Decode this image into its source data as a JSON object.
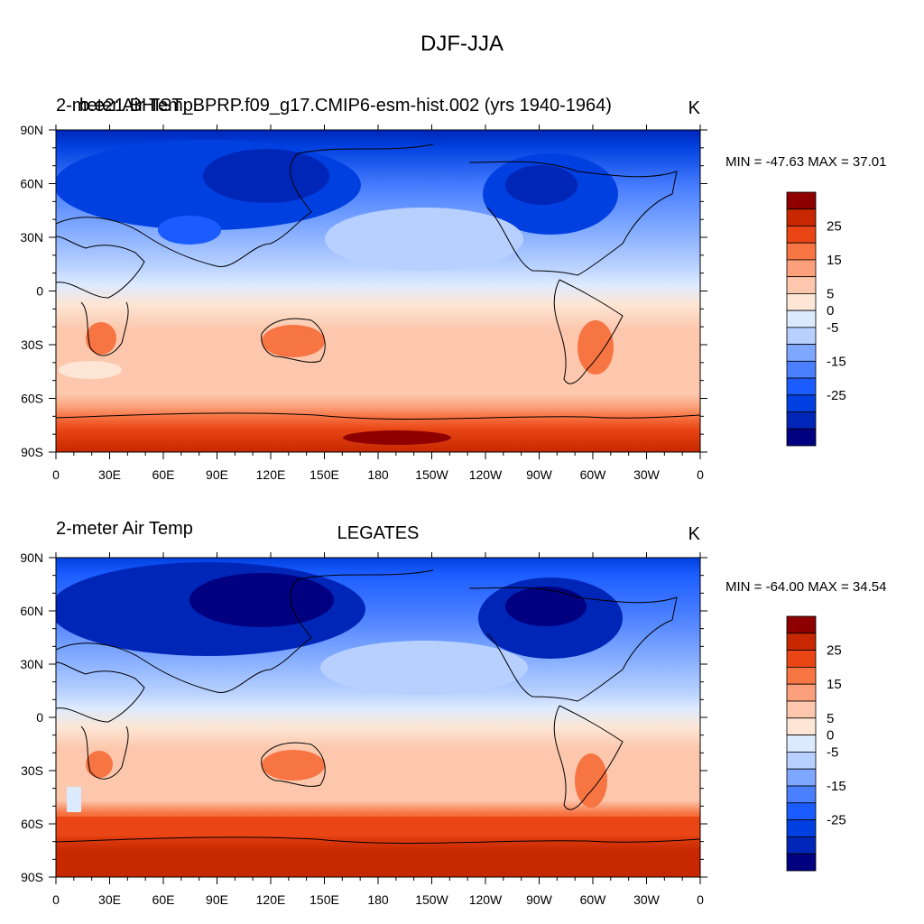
{
  "main_title": "DJF-JJA",
  "panels": [
    {
      "left_title": "2-meter Air Temp",
      "left_title_overlay": "b.e21.BHIST_BPRP.f09_g17.CMIP6-esm-hist.002 (yrs 1940-1964)",
      "center_title": "",
      "units": "K",
      "minmax": "MIN = -47.63 MAX =  37.01"
    },
    {
      "left_title": "2-meter Air Temp",
      "left_title_overlay": "",
      "center_title": "LEGATES",
      "units": "K",
      "minmax": "MIN = -64.00 MAX =  34.54"
    }
  ],
  "chart_data": [
    {
      "type": "heatmap",
      "title": "DJF-JJA",
      "xlabel": "",
      "ylabel": "",
      "x_ticks": [
        "0",
        "30E",
        "60E",
        "90E",
        "120E",
        "150E",
        "180",
        "150W",
        "120W",
        "90W",
        "60W",
        "30W",
        "0"
      ],
      "y_ticks": [
        "90N",
        "60N",
        "30N",
        "0",
        "30S",
        "60S",
        "90S"
      ],
      "xlim": [
        0,
        360
      ],
      "ylim": [
        -90,
        90
      ],
      "colorbar": {
        "levels": [
          -30,
          -25,
          -20,
          -15,
          -10,
          -5,
          0,
          5,
          10,
          15,
          20,
          25,
          30
        ],
        "labels": [
          "25",
          "15",
          "5",
          "0",
          "-5",
          "-15",
          "-25"
        ],
        "colors": [
          "#000080",
          "#0026b8",
          "#0040e0",
          "#1a5cff",
          "#4a7fff",
          "#7ea8ff",
          "#b7d0ff",
          "#dceaff",
          "#fde6d6",
          "#fcc7ac",
          "#fba07a",
          "#f77443",
          "#e94515",
          "#c72800",
          "#8e0000"
        ]
      }
    }
  ]
}
